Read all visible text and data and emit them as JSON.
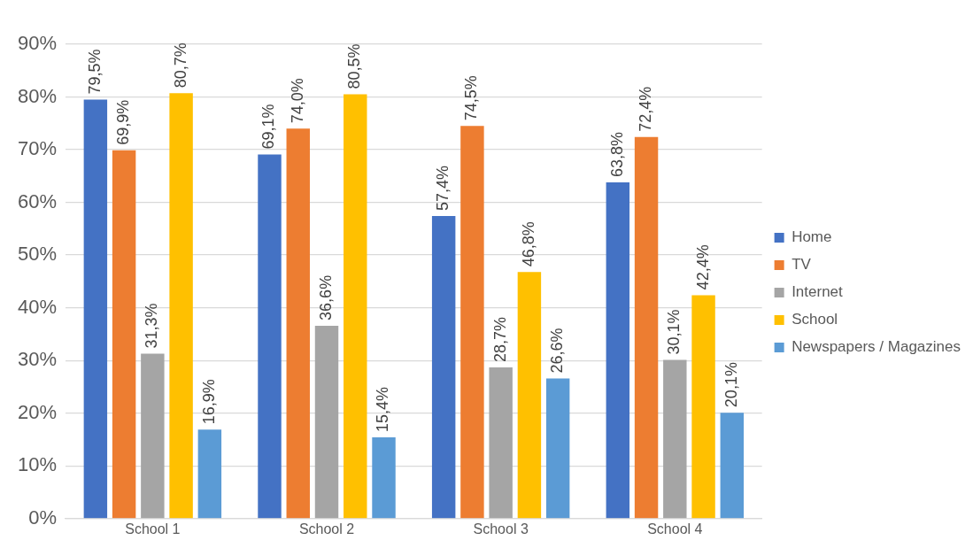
{
  "chart_data": {
    "type": "bar",
    "categories": [
      "School 1",
      "School 2",
      "School 3",
      "School 4"
    ],
    "series": [
      {
        "name": "Home",
        "color": "#4472c4",
        "values": [
          79.5,
          69.1,
          57.4,
          63.8
        ],
        "value_labels": [
          "79,5%",
          "69,1%",
          "57,4%",
          "63,8%"
        ]
      },
      {
        "name": "TV",
        "color": "#ed7d31",
        "values": [
          69.9,
          74.0,
          74.5,
          72.4
        ],
        "value_labels": [
          "69,9%",
          "74,0%",
          "74,5%",
          "72,4%"
        ]
      },
      {
        "name": "Internet",
        "color": "#a5a5a5",
        "values": [
          31.3,
          36.6,
          28.7,
          30.1
        ],
        "value_labels": [
          "31,3%",
          "36,6%",
          "28,7%",
          "30,1%"
        ]
      },
      {
        "name": "School",
        "color": "#ffc000",
        "values": [
          80.7,
          80.5,
          46.8,
          42.4
        ],
        "value_labels": [
          "80,7%",
          "80,5%",
          "46,8%",
          "42,4%"
        ]
      },
      {
        "name": "Newspapers / Magazines",
        "color": "#5b9bd5",
        "values": [
          16.9,
          15.4,
          26.6,
          20.1
        ],
        "value_labels": [
          "16,9%",
          "15,4%",
          "26,6%",
          "20,1%"
        ]
      }
    ],
    "ylim": [
      0,
      90
    ],
    "yticks": [
      {
        "value": 0,
        "label": "0%"
      },
      {
        "value": 10,
        "label": "10%"
      },
      {
        "value": 20,
        "label": "20%"
      },
      {
        "value": 30,
        "label": "30%"
      },
      {
        "value": 40,
        "label": "40%"
      },
      {
        "value": 50,
        "label": "50%"
      },
      {
        "value": 60,
        "label": "60%"
      },
      {
        "value": 70,
        "label": "70%"
      },
      {
        "value": 80,
        "label": "80%"
      },
      {
        "value": 90,
        "label": "90%"
      }
    ],
    "grid": "y",
    "legend": "right"
  }
}
